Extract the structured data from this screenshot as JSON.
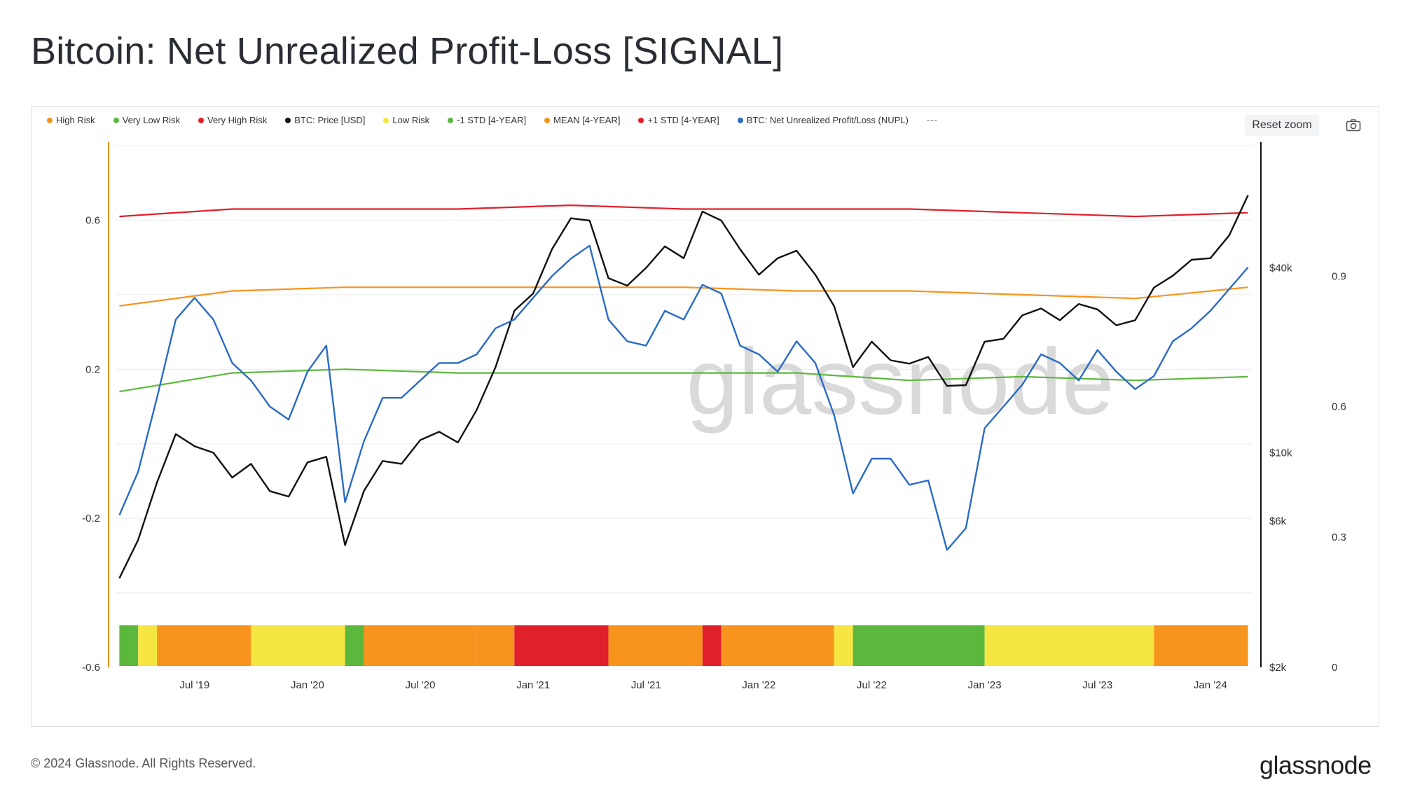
{
  "title": "Bitcoin: Net Unrealized Profit-Loss [SIGNAL]",
  "legend": [
    {
      "label": "High Risk",
      "color": "#f7941d"
    },
    {
      "label": "Very Low Risk",
      "color": "#5cb83c"
    },
    {
      "label": "Very High Risk",
      "color": "#e0202a"
    },
    {
      "label": "BTC: Price [USD]",
      "color": "#111111"
    },
    {
      "label": "Low Risk",
      "color": "#f5e642"
    },
    {
      "label": "-1 STD [4-YEAR]",
      "color": "#5cb83c"
    },
    {
      "label": "MEAN [4-YEAR]",
      "color": "#f7941d"
    },
    {
      "label": "+1 STD [4-YEAR]",
      "color": "#e0202a"
    },
    {
      "label": "BTC: Net Unrealized Profit/Loss (NUPL)",
      "color": "#2a6bc4"
    }
  ],
  "legend_more": "---",
  "reset_zoom": "Reset zoom",
  "watermark": "glassnode",
  "footer": "© 2024 Glassnode. All Rights Reserved.",
  "brand": "glassnode",
  "chart_data": {
    "type": "line",
    "x_ticks": [
      "Jul '19",
      "Jan '20",
      "Jul '20",
      "Jan '21",
      "Jul '21",
      "Jan '22",
      "Jul '22",
      "Jan '23",
      "Jul '23",
      "Jan '24"
    ],
    "x_range": [
      "2019-03",
      "2024-03"
    ],
    "left_axis": {
      "ticks": [
        "0.6",
        "0.2",
        "-0.2",
        "-0.6"
      ],
      "range": [
        -0.6,
        0.8
      ]
    },
    "right_axis_price": {
      "ticks": [
        "$40k",
        "$10k",
        "$6k",
        "$2k"
      ],
      "scale": "log"
    },
    "right_axis_nupl": {
      "ticks": [
        "0.9",
        "0.6",
        "0.3",
        "0"
      ],
      "range": [
        0,
        1.2
      ]
    },
    "grid": true,
    "series": [
      {
        "name": "BTC: Net Unrealized Profit/Loss (NUPL)",
        "color": "#2a6bc4",
        "x": [
          "2019-03",
          "2019-04",
          "2019-05",
          "2019-06",
          "2019-07",
          "2019-08",
          "2019-09",
          "2019-10",
          "2019-11",
          "2019-12",
          "2020-01",
          "2020-02",
          "2020-03",
          "2020-04",
          "2020-05",
          "2020-06",
          "2020-07",
          "2020-08",
          "2020-09",
          "2020-10",
          "2020-11",
          "2020-12",
          "2021-01",
          "2021-02",
          "2021-03",
          "2021-04",
          "2021-05",
          "2021-06",
          "2021-07",
          "2021-08",
          "2021-09",
          "2021-10",
          "2021-11",
          "2021-12",
          "2022-01",
          "2022-02",
          "2022-03",
          "2022-04",
          "2022-05",
          "2022-06",
          "2022-07",
          "2022-08",
          "2022-09",
          "2022-10",
          "2022-11",
          "2022-12",
          "2023-01",
          "2023-02",
          "2023-03",
          "2023-04",
          "2023-05",
          "2023-06",
          "2023-07",
          "2023-08",
          "2023-09",
          "2023-10",
          "2023-11",
          "2023-12",
          "2024-01",
          "2024-02",
          "2024-03"
        ],
        "values": [
          0.35,
          0.45,
          0.62,
          0.8,
          0.85,
          0.8,
          0.7,
          0.66,
          0.6,
          0.57,
          0.68,
          0.74,
          0.38,
          0.52,
          0.62,
          0.62,
          0.66,
          0.7,
          0.7,
          0.72,
          0.78,
          0.8,
          0.85,
          0.9,
          0.94,
          0.97,
          0.8,
          0.75,
          0.74,
          0.82,
          0.8,
          0.88,
          0.86,
          0.74,
          0.72,
          0.68,
          0.75,
          0.7,
          0.58,
          0.4,
          0.48,
          0.48,
          0.42,
          0.43,
          0.27,
          0.32,
          0.55,
          0.6,
          0.65,
          0.72,
          0.7,
          0.66,
          0.73,
          0.68,
          0.64,
          0.67,
          0.75,
          0.78,
          0.82,
          0.87,
          0.92
        ]
      },
      {
        "name": "BTC: Price [USD]",
        "color": "#111111",
        "x": [
          "2019-03",
          "2019-04",
          "2019-05",
          "2019-06",
          "2019-07",
          "2019-08",
          "2019-09",
          "2019-10",
          "2019-11",
          "2019-12",
          "2020-01",
          "2020-02",
          "2020-03",
          "2020-04",
          "2020-05",
          "2020-06",
          "2020-07",
          "2020-08",
          "2020-09",
          "2020-10",
          "2020-11",
          "2020-12",
          "2021-01",
          "2021-02",
          "2021-03",
          "2021-04",
          "2021-05",
          "2021-06",
          "2021-07",
          "2021-08",
          "2021-09",
          "2021-10",
          "2021-11",
          "2021-12",
          "2022-01",
          "2022-02",
          "2022-03",
          "2022-04",
          "2022-05",
          "2022-06",
          "2022-07",
          "2022-08",
          "2022-09",
          "2022-10",
          "2022-11",
          "2022-12",
          "2023-01",
          "2023-02",
          "2023-03",
          "2023-04",
          "2023-05",
          "2023-06",
          "2023-07",
          "2023-08",
          "2023-09",
          "2023-10",
          "2023-11",
          "2023-12",
          "2024-01",
          "2024-02",
          "2024-03"
        ],
        "values": [
          3900,
          5200,
          8000,
          11500,
          10500,
          10000,
          8300,
          9200,
          7500,
          7200,
          9300,
          9700,
          5000,
          7500,
          9400,
          9200,
          11000,
          11700,
          10800,
          13800,
          19000,
          29000,
          33000,
          46000,
          58000,
          57000,
          37000,
          35000,
          40000,
          47000,
          43000,
          61000,
          57000,
          46000,
          38000,
          43000,
          45500,
          38000,
          30000,
          19000,
          23000,
          20000,
          19500,
          20500,
          16500,
          16600,
          23000,
          23500,
          28000,
          29500,
          27000,
          30500,
          29300,
          26000,
          27000,
          34500,
          37700,
          42500,
          43000,
          51000,
          69000
        ]
      },
      {
        "name": "MEAN [4-YEAR]",
        "color": "#f7941d",
        "x": [
          "2019-03",
          "2019-09",
          "2020-03",
          "2020-09",
          "2021-03",
          "2021-09",
          "2022-03",
          "2022-09",
          "2023-03",
          "2023-09",
          "2024-03"
        ],
        "values": [
          0.37,
          0.41,
          0.42,
          0.42,
          0.42,
          0.42,
          0.41,
          0.41,
          0.4,
          0.39,
          0.42
        ]
      },
      {
        "name": "+1 STD [4-YEAR]",
        "color": "#e0202a",
        "x": [
          "2019-03",
          "2019-09",
          "2020-03",
          "2020-09",
          "2021-03",
          "2021-09",
          "2022-03",
          "2022-09",
          "2023-03",
          "2023-09",
          "2024-03"
        ],
        "values": [
          0.61,
          0.63,
          0.63,
          0.63,
          0.64,
          0.63,
          0.63,
          0.63,
          0.62,
          0.61,
          0.62
        ]
      },
      {
        "name": "-1 STD [4-YEAR]",
        "color": "#5cb83c",
        "x": [
          "2019-03",
          "2019-09",
          "2020-03",
          "2020-09",
          "2021-03",
          "2021-09",
          "2022-03",
          "2022-09",
          "2023-03",
          "2023-09",
          "2024-03"
        ],
        "values": [
          0.14,
          0.19,
          0.2,
          0.19,
          0.19,
          0.19,
          0.19,
          0.17,
          0.18,
          0.17,
          0.18
        ]
      }
    ],
    "signal_bar": {
      "segments": [
        {
          "from": "2019-03",
          "to": "2019-04",
          "level": "Very Low Risk",
          "color": "#5cb83c"
        },
        {
          "from": "2019-04",
          "to": "2019-05",
          "level": "Low Risk",
          "color": "#f5e642"
        },
        {
          "from": "2019-05",
          "to": "2019-10",
          "level": "High Risk",
          "color": "#f7941d"
        },
        {
          "from": "2019-10",
          "to": "2020-03",
          "level": "Low Risk",
          "color": "#f5e642"
        },
        {
          "from": "2020-03",
          "to": "2020-04",
          "level": "Very Low Risk",
          "color": "#5cb83c"
        },
        {
          "from": "2020-04",
          "to": "2020-10",
          "level": "High Risk",
          "color": "#f7941d"
        },
        {
          "from": "2020-10",
          "to": "2020-12",
          "level": "High Risk",
          "color": "#f7941d"
        },
        {
          "from": "2020-12",
          "to": "2021-05",
          "level": "Very High Risk",
          "color": "#e0202a"
        },
        {
          "from": "2021-05",
          "to": "2021-10",
          "level": "High Risk",
          "color": "#f7941d"
        },
        {
          "from": "2021-10",
          "to": "2021-11",
          "level": "Very High Risk",
          "color": "#e0202a"
        },
        {
          "from": "2021-11",
          "to": "2022-05",
          "level": "High Risk",
          "color": "#f7941d"
        },
        {
          "from": "2022-05",
          "to": "2022-06",
          "level": "Low Risk",
          "color": "#f5e642"
        },
        {
          "from": "2022-06",
          "to": "2023-01",
          "level": "Very Low Risk",
          "color": "#5cb83c"
        },
        {
          "from": "2023-01",
          "to": "2023-10",
          "level": "Low Risk",
          "color": "#f5e642"
        },
        {
          "from": "2023-10",
          "to": "2024-03",
          "level": "High Risk",
          "color": "#f7941d"
        }
      ]
    }
  }
}
